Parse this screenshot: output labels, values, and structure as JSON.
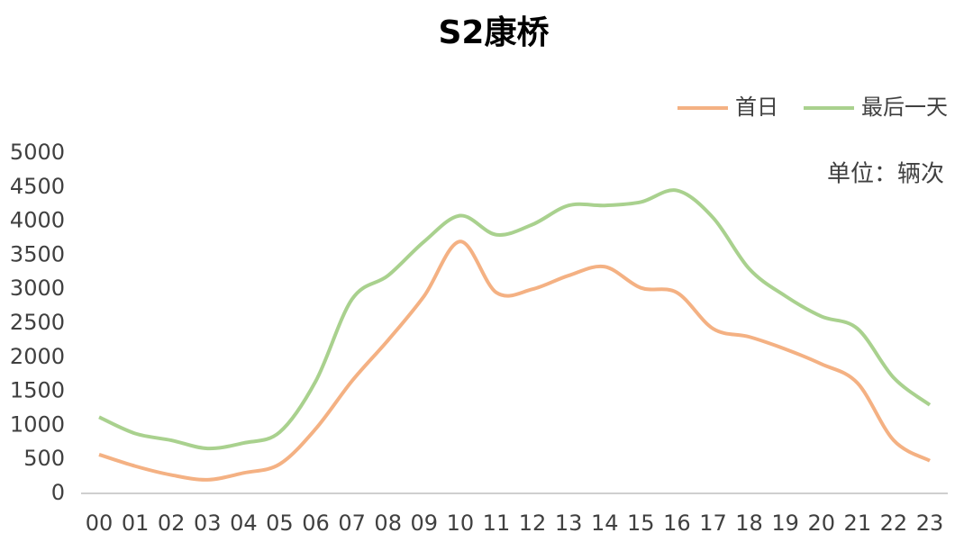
{
  "chart_data": {
    "type": "line",
    "title": "S2康桥",
    "annotation": "单位：辆次",
    "categories": [
      "00",
      "01",
      "02",
      "03",
      "04",
      "05",
      "06",
      "07",
      "08",
      "09",
      "10",
      "11",
      "12",
      "13",
      "14",
      "15",
      "16",
      "17",
      "18",
      "19",
      "20",
      "21",
      "22",
      "23"
    ],
    "series": [
      {
        "name": "首日",
        "color": "#f4b183",
        "values": [
          570,
          400,
          270,
          200,
          300,
          430,
          950,
          1650,
          2250,
          2900,
          3700,
          2950,
          3000,
          3200,
          3330,
          3020,
          2950,
          2420,
          2300,
          2120,
          1900,
          1620,
          780,
          480
        ]
      },
      {
        "name": "最后一天",
        "color": "#a9d18e",
        "values": [
          1120,
          880,
          780,
          660,
          740,
          900,
          1650,
          2850,
          3200,
          3700,
          4080,
          3800,
          3950,
          4230,
          4230,
          4280,
          4450,
          4050,
          3300,
          2900,
          2600,
          2420,
          1700,
          1300
        ]
      }
    ],
    "ylim": [
      0,
      5000
    ],
    "yticks": [
      0,
      500,
      1000,
      1500,
      2000,
      2500,
      3000,
      3500,
      4000,
      4500,
      5000
    ],
    "legend": "top-right",
    "smooth": true
  }
}
